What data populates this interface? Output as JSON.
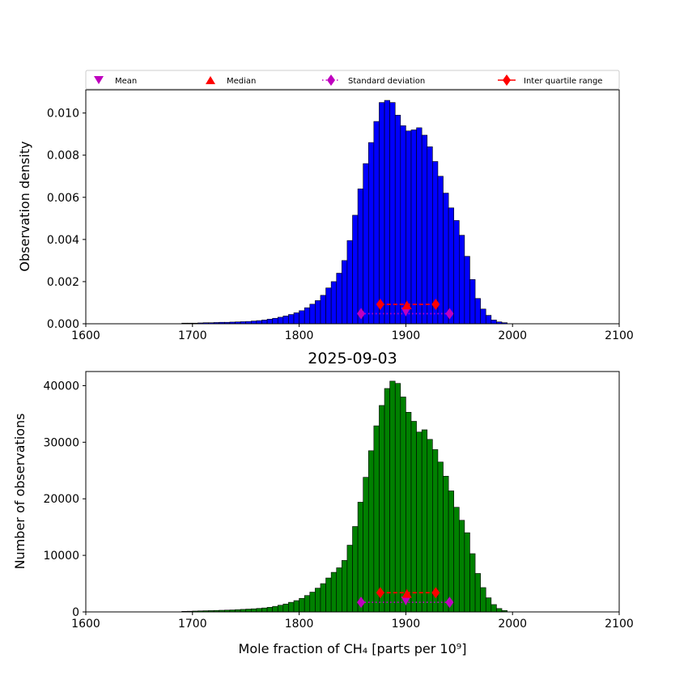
{
  "legend": {
    "items": [
      {
        "label": "Mean",
        "marker": "triangle-down",
        "color": "#bf00bf"
      },
      {
        "label": "Median",
        "marker": "triangle-up",
        "color": "#ff0000"
      },
      {
        "label": "Standard deviation",
        "marker": "thin-diamond",
        "color": "#bf00bf",
        "line": "dotted"
      },
      {
        "label": "Inter quartile range",
        "marker": "thin-diamond",
        "color": "#ff0000",
        "line": "solid"
      }
    ]
  },
  "chart_data": [
    {
      "type": "bar",
      "color": "#0000ff",
      "xlabel": "",
      "ylabel": "Observation density",
      "xlim": [
        1600,
        2100
      ],
      "ylim": [
        0,
        0.0111
      ],
      "xticks": [
        "1600",
        "1700",
        "1800",
        "1900",
        "2000",
        "2100"
      ],
      "yticks": [
        "0.000",
        "0.002",
        "0.004",
        "0.006",
        "0.008",
        "0.010"
      ],
      "ytick_values": [
        0,
        0.002,
        0.004,
        0.006,
        0.008,
        0.01
      ],
      "bin_start": 1690,
      "bin_width": 5,
      "values": [
        3e-05,
        3e-05,
        3e-05,
        4e-05,
        5e-05,
        5e-05,
        6e-05,
        7e-05,
        7e-05,
        8e-05,
        9e-05,
        0.0001,
        0.00011,
        0.00013,
        0.00015,
        0.00018,
        0.00022,
        0.00026,
        0.00031,
        0.00037,
        0.00044,
        0.00052,
        0.00062,
        0.00076,
        0.00093,
        0.0011,
        0.00135,
        0.0017,
        0.002,
        0.0024,
        0.003,
        0.00395,
        0.00515,
        0.0064,
        0.0076,
        0.0086,
        0.0096,
        0.0105,
        0.0106,
        0.0105,
        0.0099,
        0.0094,
        0.00915,
        0.0092,
        0.0093,
        0.00895,
        0.0084,
        0.0077,
        0.007,
        0.0062,
        0.0055,
        0.0049,
        0.0042,
        0.0032,
        0.0021,
        0.0012,
        0.0007,
        0.0004,
        0.00018,
        9e-05,
        5e-05
      ],
      "stats": {
        "mean": 1900,
        "median": 1901,
        "std_range": [
          1858,
          1941
        ],
        "iqr_range": [
          1876,
          1928
        ],
        "std_level": 0.00048,
        "mean_level": 0.00058,
        "iqr_level": 0.00092,
        "median_level": 0.00088
      }
    },
    {
      "type": "bar",
      "color": "#008000",
      "title": "2025-09-03",
      "xlabel": "Mole fraction of CH₄ [parts per 10⁹]",
      "ylabel": "Number of observations",
      "xlim": [
        1600,
        2100
      ],
      "ylim": [
        0,
        42500
      ],
      "xticks": [
        "1600",
        "1700",
        "1800",
        "1900",
        "2000",
        "2100"
      ],
      "yticks": [
        "0",
        "10000",
        "20000",
        "30000",
        "40000"
      ],
      "ytick_values": [
        0,
        10000,
        20000,
        30000,
        40000
      ],
      "bin_start": 1690,
      "bin_width": 5,
      "values": [
        100,
        120,
        150,
        180,
        210,
        230,
        260,
        290,
        320,
        350,
        400,
        450,
        500,
        550,
        620,
        700,
        820,
        980,
        1180,
        1400,
        1700,
        2000,
        2400,
        2900,
        3500,
        4200,
        5000,
        6000,
        7000,
        7800,
        9100,
        11800,
        15100,
        19400,
        23800,
        28500,
        32900,
        36500,
        39500,
        40800,
        40400,
        38000,
        35300,
        33700,
        31800,
        32200,
        30500,
        28700,
        26500,
        24000,
        21400,
        18500,
        16200,
        14000,
        10300,
        6800,
        4300,
        2500,
        1300,
        600,
        250
      ],
      "stats": {
        "mean": 1900,
        "median": 1901,
        "std_range": [
          1858,
          1941
        ],
        "iqr_range": [
          1876,
          1928
        ],
        "std_level": 1700,
        "mean_level": 2000,
        "iqr_level": 3400,
        "median_level": 3200
      }
    }
  ]
}
